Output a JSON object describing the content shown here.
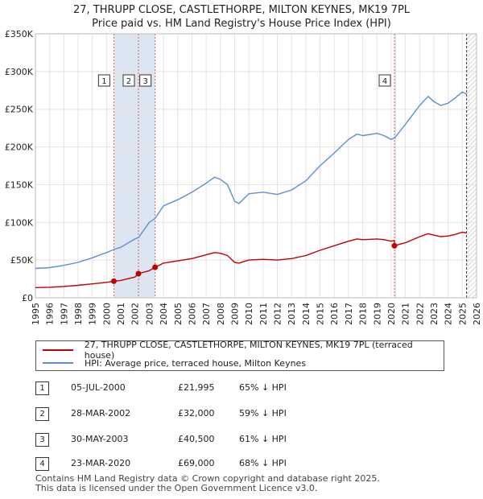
{
  "title_line1": "27, THRUPP CLOSE, CASTLETHORPE, MILTON KEYNES, MK19 7PL",
  "title_line2": "Price paid vs. HM Land Registry's House Price Index (HPI)",
  "colors": {
    "hpi": "#5b8fcf",
    "price": "#c00000",
    "shade": "#dce6f2",
    "grid": "#e3e3e3"
  },
  "chart_data": {
    "type": "line",
    "title": "Price paid vs. HM Land Registry's House Price Index (HPI)",
    "xlim": [
      1995,
      2026
    ],
    "ylim": [
      0,
      350000
    ],
    "x_ticks": [
      "1995",
      "1996",
      "1997",
      "1998",
      "1999",
      "2000",
      "2001",
      "2002",
      "2003",
      "2004",
      "2005",
      "2006",
      "2007",
      "2008",
      "2009",
      "2010",
      "2011",
      "2012",
      "2013",
      "2014",
      "2015",
      "2016",
      "2017",
      "2018",
      "2019",
      "2020",
      "2021",
      "2022",
      "2023",
      "2024",
      "2025",
      "2026"
    ],
    "y_ticks": [
      {
        "value": 0,
        "label": "£0"
      },
      {
        "value": 50000,
        "label": "£50K"
      },
      {
        "value": 100000,
        "label": "£100K"
      },
      {
        "value": 150000,
        "label": "£150K"
      },
      {
        "value": 200000,
        "label": "£200K"
      },
      {
        "value": 250000,
        "label": "£250K"
      },
      {
        "value": 300000,
        "label": "£300K"
      },
      {
        "value": 350000,
        "label": "£350K"
      }
    ],
    "series": [
      {
        "name": "HPI: Average price, terraced house, Milton Keynes",
        "x": [
          1995,
          1996,
          1997,
          1998,
          1999,
          2000,
          2000.5,
          2001,
          2002,
          2002.25,
          2003,
          2003.4,
          2004,
          2005,
          2006,
          2007,
          2007.6,
          2008,
          2008.5,
          2009,
          2009.3,
          2010,
          2011,
          2012,
          2013,
          2014,
          2015,
          2016,
          2017,
          2017.6,
          2018,
          2019,
          2019.5,
          2020,
          2020.25,
          2021,
          2022,
          2022.6,
          2023,
          2023.5,
          2024,
          2024.5,
          2025,
          2025.3
        ],
        "values": [
          39000,
          40000,
          43000,
          47000,
          53000,
          60000,
          64000,
          67000,
          78000,
          80000,
          100000,
          105000,
          122000,
          130000,
          140000,
          152000,
          160000,
          157000,
          150000,
          128000,
          125000,
          138000,
          140000,
          137000,
          143000,
          155000,
          175000,
          192000,
          210000,
          217000,
          215000,
          218000,
          215000,
          210000,
          212000,
          230000,
          255000,
          267000,
          260000,
          255000,
          258000,
          265000,
          273000,
          270000
        ]
      },
      {
        "name": "27, THRUPP CLOSE, CASTLETHORPE, MILTON KEYNES, MK19 7PL (terraced house)",
        "x": [
          1995,
          1996,
          1997,
          1998,
          1999,
          2000,
          2000.5,
          2001,
          2002,
          2002.24,
          2003,
          2003.41,
          2004,
          2005,
          2006,
          2007,
          2007.6,
          2008,
          2008.5,
          2009,
          2009.3,
          2010,
          2011,
          2012,
          2013,
          2014,
          2015,
          2016,
          2017,
          2017.6,
          2018,
          2019,
          2019.5,
          2020,
          2020.22,
          2020.23,
          2021,
          2022,
          2022.6,
          2023,
          2023.5,
          2024,
          2024.5,
          2025,
          2025.3
        ],
        "values": [
          13500,
          14000,
          15000,
          16500,
          18500,
          20500,
          21995,
          23000,
          27500,
          32000,
          36000,
          40500,
          46000,
          49000,
          52000,
          57000,
          60000,
          59000,
          56000,
          47000,
          46000,
          50000,
          51000,
          50000,
          52000,
          56000,
          63000,
          69000,
          75000,
          78000,
          77000,
          78000,
          77000,
          75000,
          76000,
          69000,
          73000,
          81000,
          85000,
          83000,
          81000,
          82000,
          84000,
          87000,
          86000
        ]
      }
    ],
    "sales": [
      {
        "label": "1",
        "x": 2000.51,
        "value": 21995
      },
      {
        "label": "2",
        "x": 2002.24,
        "value": 32000
      },
      {
        "label": "3",
        "x": 2003.41,
        "value": 40500
      },
      {
        "label": "4",
        "x": 2020.23,
        "value": 69000
      }
    ],
    "shaded_ranges": [
      [
        2000.51,
        2002.24
      ],
      [
        2002.24,
        2003.41
      ],
      [
        2020.23,
        2020.3
      ]
    ],
    "hatched_from": 2025.3,
    "dashed_line_at": 2025.3
  },
  "legend": {
    "property": "27, THRUPP CLOSE, CASTLETHORPE, MILTON KEYNES, MK19 7PL (terraced house)",
    "hpi": "HPI: Average price, terraced house, Milton Keynes"
  },
  "sales_table": [
    {
      "num": "1",
      "date": "05-JUL-2000",
      "price": "£21,995",
      "hpi": "65% ↓ HPI"
    },
    {
      "num": "2",
      "date": "28-MAR-2002",
      "price": "£32,000",
      "hpi": "59% ↓ HPI"
    },
    {
      "num": "3",
      "date": "30-MAY-2003",
      "price": "£40,500",
      "hpi": "61% ↓ HPI"
    },
    {
      "num": "4",
      "date": "23-MAR-2020",
      "price": "£69,000",
      "hpi": "68% ↓ HPI"
    }
  ],
  "footer_line1": "Contains HM Land Registry data © Crown copyright and database right 2025.",
  "footer_line2": "This data is licensed under the Open Government Licence v3.0."
}
